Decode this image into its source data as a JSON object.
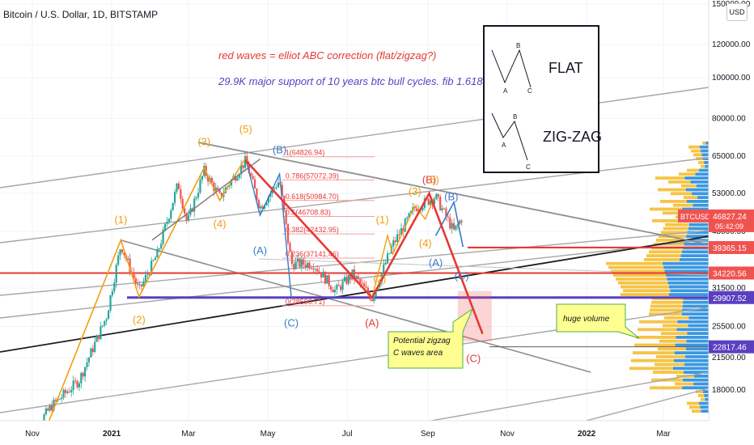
{
  "header": {
    "title": "Bitcoin / U.S. Dollar, 1D, BITSTAMP",
    "currency": "USD"
  },
  "notes": {
    "elliot": "red waves = elliot ABC correction (flat/zigzag?)",
    "support": "29.9K major support of 10 years btc bull cycles. fib 1.618"
  },
  "legend_box": {
    "flat_label": "FLAT",
    "zigzag_label": "ZIG-ZAG",
    "flat_points": [
      "A",
      "B",
      "C"
    ],
    "zigzag_points": [
      "A",
      "B",
      "C"
    ]
  },
  "callouts": {
    "zigzag": [
      "Potential zigzag",
      "C waves area"
    ],
    "volume": "huge volume"
  },
  "colors": {
    "up": "#26a69a",
    "down": "#ef5350",
    "accent_red": "#e53935",
    "support_purple": "#5b3fc1",
    "wave_orange": "#f29d0f",
    "wave_blue": "#3b7bc6",
    "volume_orange": "#f6c445",
    "volume_blue": "#3a97e0"
  },
  "chart_data": {
    "type": "candlestick",
    "scale": "log",
    "symbol": "BTCUSD",
    "interval": "1D",
    "x_ticks": [
      "Nov",
      "2021",
      "Mar",
      "May",
      "Jul",
      "Sep",
      "Nov",
      "2022",
      "Mar"
    ],
    "y_ticks": [
      "150000.00",
      "120000.00",
      "100000.00",
      "80000.00",
      "65000.00",
      "53000.00",
      "43000.00",
      "31500.00",
      "25500.00",
      "21500.00",
      "18000.00"
    ],
    "y_tick_values": [
      150000,
      120000,
      100000,
      80000,
      65000,
      53000,
      43000,
      31500,
      25500,
      21500,
      18000
    ],
    "price_badges": [
      {
        "label": "BTCUSD",
        "value": "46827.24",
        "sub": "05:42:09",
        "color": "#ef5350"
      },
      {
        "label": "",
        "value": "39365.15",
        "color": "#ef5350"
      },
      {
        "label": "",
        "value": "34220.56",
        "color": "#ef5350"
      },
      {
        "label": "",
        "value": "29907.52",
        "color": "#5b3fc1"
      },
      {
        "label": "",
        "value": "22817.46",
        "color": "#5b3fc1"
      }
    ],
    "price_series": {
      "dates": [
        "2020-10-26",
        "2020-11-16",
        "2020-12-07",
        "2020-12-28",
        "2021-01-08",
        "2021-01-22",
        "2021-02-05",
        "2021-02-21",
        "2021-02-28",
        "2021-03-13",
        "2021-03-25",
        "2021-04-14",
        "2021-04-25",
        "2021-05-10",
        "2021-05-19",
        "2021-06-05",
        "2021-06-22",
        "2021-07-05",
        "2021-07-20",
        "2021-08-05",
        "2021-08-22",
        "2021-09-07",
        "2021-09-21",
        "2021-09-28"
      ],
      "close": [
        13500,
        16500,
        19000,
        27000,
        40000,
        31000,
        38000,
        56000,
        45000,
        60000,
        52000,
        63500,
        49000,
        57000,
        36000,
        36000,
        31000,
        34000,
        29800,
        40000,
        49000,
        52000,
        43000,
        46827
      ]
    },
    "fib_levels": [
      {
        "label": "1(64826.94)",
        "value": 64826.94
      },
      {
        "label": "0.786(57072.39)",
        "value": 57072.39
      },
      {
        "label": "0.618(50984.70)",
        "value": 50984.7
      },
      {
        "label": "0.5(46708.83)",
        "value": 46708.83
      },
      {
        "label": "0.382(42432.95)",
        "value": 42432.95
      },
      {
        "label": "0.236(37141.46)",
        "value": 37141.46
      },
      {
        "label": "0(28590.71)",
        "value": 28590.71
      }
    ],
    "horizontal_levels": [
      {
        "value": 39365.15,
        "color": "red"
      },
      {
        "value": 34220.56,
        "color": "red"
      },
      {
        "value": 29907.52,
        "color": "purple"
      },
      {
        "value": 22817.46,
        "color": "dark"
      }
    ],
    "wave_labels": [
      {
        "text": "(1)",
        "date": "2021-01-08",
        "price": 45000,
        "color": "orange"
      },
      {
        "text": "(2)",
        "date": "2021-01-22",
        "price": 26000,
        "color": "orange"
      },
      {
        "text": "(3)",
        "date": "2021-03-13",
        "price": 69000,
        "color": "orange"
      },
      {
        "text": "(4)",
        "date": "2021-03-25",
        "price": 44000,
        "color": "orange"
      },
      {
        "text": "(5)",
        "date": "2021-04-14",
        "price": 74000,
        "color": "orange"
      },
      {
        "text": "(B)",
        "date": "2021-05-10",
        "price": 66000,
        "color": "blue"
      },
      {
        "text": "(A)",
        "date": "2021-04-25",
        "price": 38000,
        "color": "blue"
      },
      {
        "text": "(C)",
        "date": "2021-05-19",
        "price": 25500,
        "color": "blue"
      },
      {
        "text": "(A)",
        "date": "2021-07-20",
        "price": 25500,
        "color": "red"
      },
      {
        "text": "(1)",
        "date": "2021-07-28",
        "price": 45000,
        "color": "orange"
      },
      {
        "text": "(2)",
        "date": "2021-07-26",
        "price": 32500,
        "color": "orange"
      },
      {
        "text": "(3)",
        "date": "2021-08-22",
        "price": 52500,
        "color": "orange"
      },
      {
        "text": "(B)",
        "date": "2021-09-02",
        "price": 56000,
        "color": "red"
      },
      {
        "text": "5)",
        "date": "2021-09-06",
        "price": 56000,
        "color": "orange"
      },
      {
        "text": "(B)",
        "date": "2021-09-19",
        "price": 51000,
        "color": "blue"
      },
      {
        "text": "(4)",
        "date": "2021-08-30",
        "price": 39500,
        "color": "orange"
      },
      {
        "text": "(A)",
        "date": "2021-09-07",
        "price": 35500,
        "color": "blue"
      },
      {
        "text": "(C)",
        "date": "2021-09-27",
        "price": 33000,
        "color": "blue"
      },
      {
        "text": "(C)",
        "date": "2021-10-06",
        "price": 21000,
        "color": "red"
      }
    ],
    "red_abc_path": {
      "dates": [
        "2021-04-14",
        "2021-07-20",
        "2021-09-02",
        "2021-10-13"
      ],
      "prices": [
        63500,
        29900,
        53000,
        24500
      ]
    },
    "blue_projection_path": {
      "dates": [
        "2021-09-07",
        "2021-09-21",
        "2021-09-28"
      ],
      "prices": [
        42000,
        50500,
        39500
      ]
    },
    "projection_zone": {
      "date_from": "2021-09-24",
      "date_to": "2021-10-20",
      "price_from": 23500,
      "price_to": 31000
    },
    "volume_profile": "horizontal volume-by-price histogram on right edge, heaviest near 31000 to 37000"
  }
}
